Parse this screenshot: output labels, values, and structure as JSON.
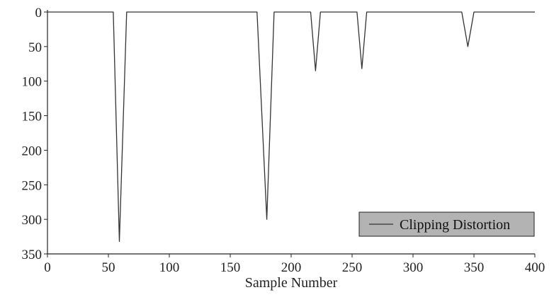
{
  "chart_data": {
    "type": "line",
    "title": "",
    "xlabel": "Sample Number",
    "ylabel": "",
    "xlim": [
      0,
      400
    ],
    "ylim": [
      0,
      350
    ],
    "y_inverted": true,
    "grid": false,
    "legend_position": "bottom-right",
    "x_ticks": [
      0,
      50,
      100,
      150,
      200,
      250,
      300,
      350,
      400
    ],
    "y_ticks": [
      0,
      50,
      100,
      150,
      200,
      250,
      300,
      350
    ],
    "series": [
      {
        "name": "Clipping Distortion",
        "color": "#333333",
        "x": [
          0,
          54,
          59,
          65,
          172,
          180,
          186,
          216,
          220,
          224,
          254,
          258,
          262,
          340,
          345,
          350,
          400
        ],
        "y": [
          0,
          0,
          332,
          0,
          0,
          300,
          0,
          0,
          85,
          0,
          0,
          82,
          0,
          0,
          50,
          0,
          0
        ]
      }
    ]
  },
  "colors": {
    "axis": "#222222",
    "legend_fill": "#b3b3b3"
  }
}
